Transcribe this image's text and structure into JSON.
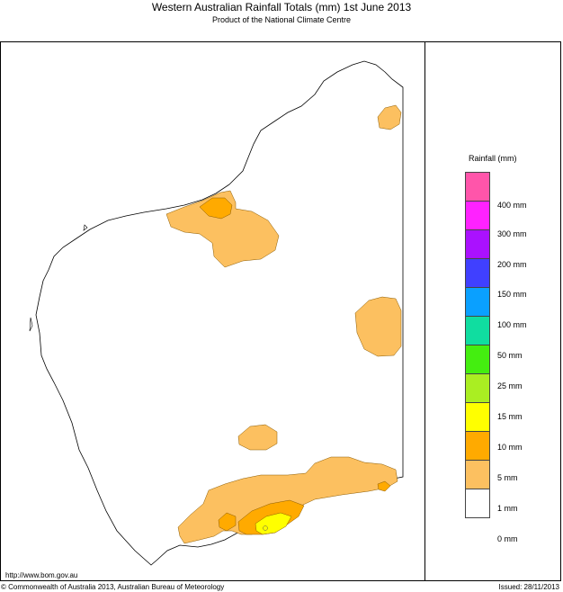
{
  "header": {
    "title": "Western Australian Rainfall Totals (mm) 1st June 2013",
    "subtitle": "Product of the National Climate Centre"
  },
  "footer": {
    "url": "http://www.bom.gov.au",
    "copyright": "© Commonwealth of Australia 2013, Australian Bureau of Meteorology",
    "issued": "Issued: 28/11/2013"
  },
  "legend": {
    "title": "Rainfall (mm)",
    "bands": [
      {
        "label": "400 mm",
        "color": "#ff55aa"
      },
      {
        "label": "300 mm",
        "color": "#ff22ff"
      },
      {
        "label": "200 mm",
        "color": "#aa11ff"
      },
      {
        "label": "150 mm",
        "color": "#4040ff"
      },
      {
        "label": "100 mm",
        "color": "#0aa0ff"
      },
      {
        "label": "50 mm",
        "color": "#10dda0"
      },
      {
        "label": "25 mm",
        "color": "#44ee10"
      },
      {
        "label": "15 mm",
        "color": "#aaee22"
      },
      {
        "label": "10 mm",
        "color": "#ffff00"
      },
      {
        "label": "5 mm",
        "color": "#ffaa00"
      },
      {
        "label": "1 mm",
        "color": "#fcc060"
      },
      {
        "label": "0 mm",
        "color": "#ffffff"
      }
    ]
  }
}
